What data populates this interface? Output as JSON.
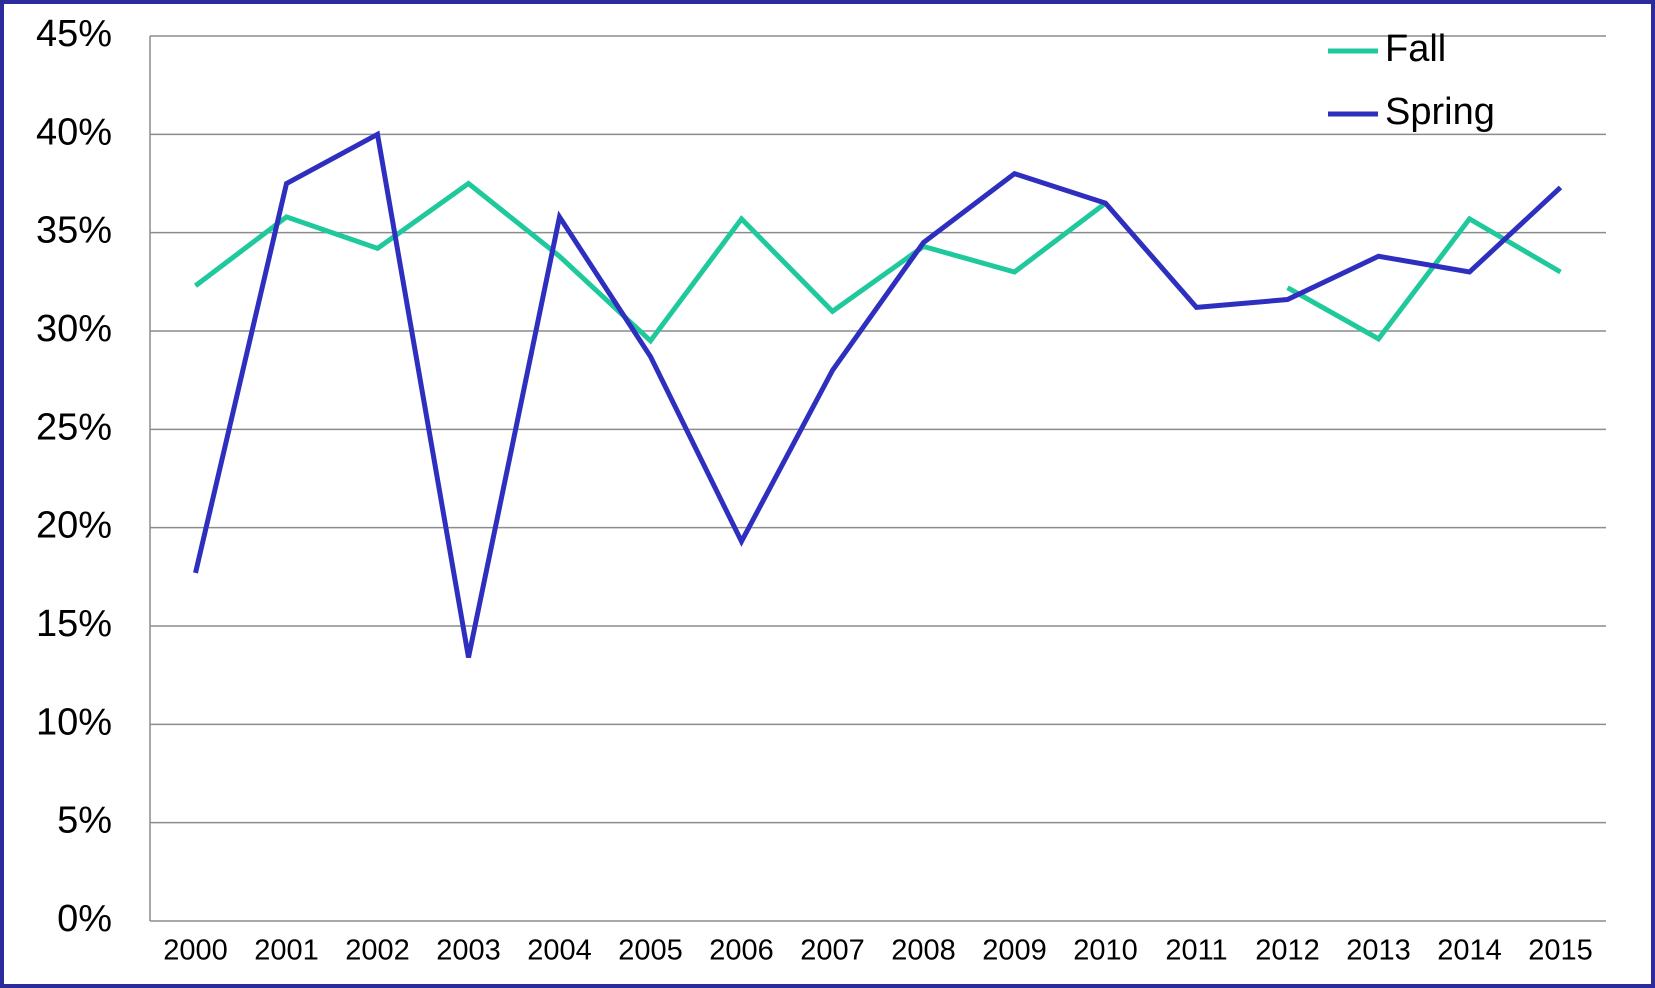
{
  "chart_data": {
    "type": "line",
    "categories": [
      "2000",
      "2001",
      "2002",
      "2003",
      "2004",
      "2005",
      "2006",
      "2007",
      "2008",
      "2009",
      "2010",
      "2011",
      "2012",
      "2013",
      "2014",
      "2015"
    ],
    "series": [
      {
        "name": "Fall",
        "color": "#1fc99c",
        "values": [
          32.3,
          35.8,
          34.2,
          37.5,
          33.8,
          29.5,
          35.7,
          31.0,
          34.3,
          33.0,
          36.5,
          null,
          32.2,
          29.6,
          35.7,
          33.0
        ]
      },
      {
        "name": "Spring",
        "color": "#2f2fbf",
        "values": [
          17.7,
          37.5,
          40.0,
          13.4,
          35.8,
          28.7,
          19.3,
          28.0,
          34.5,
          38.0,
          36.5,
          31.2,
          31.6,
          33.8,
          33.0,
          37.3
        ]
      }
    ],
    "ylim": [
      0,
      45
    ],
    "yticks": [
      {
        "value": 0,
        "label": "0%"
      },
      {
        "value": 5,
        "label": "5%"
      },
      {
        "value": 10,
        "label": "10%"
      },
      {
        "value": 15,
        "label": "15%"
      },
      {
        "value": 20,
        "label": "20%"
      },
      {
        "value": 25,
        "label": "25%"
      },
      {
        "value": 30,
        "label": "30%"
      },
      {
        "value": 35,
        "label": "35%"
      },
      {
        "value": 40,
        "label": "40%"
      },
      {
        "value": 45,
        "label": "45%"
      }
    ],
    "grid": true,
    "legend": "upper right"
  }
}
